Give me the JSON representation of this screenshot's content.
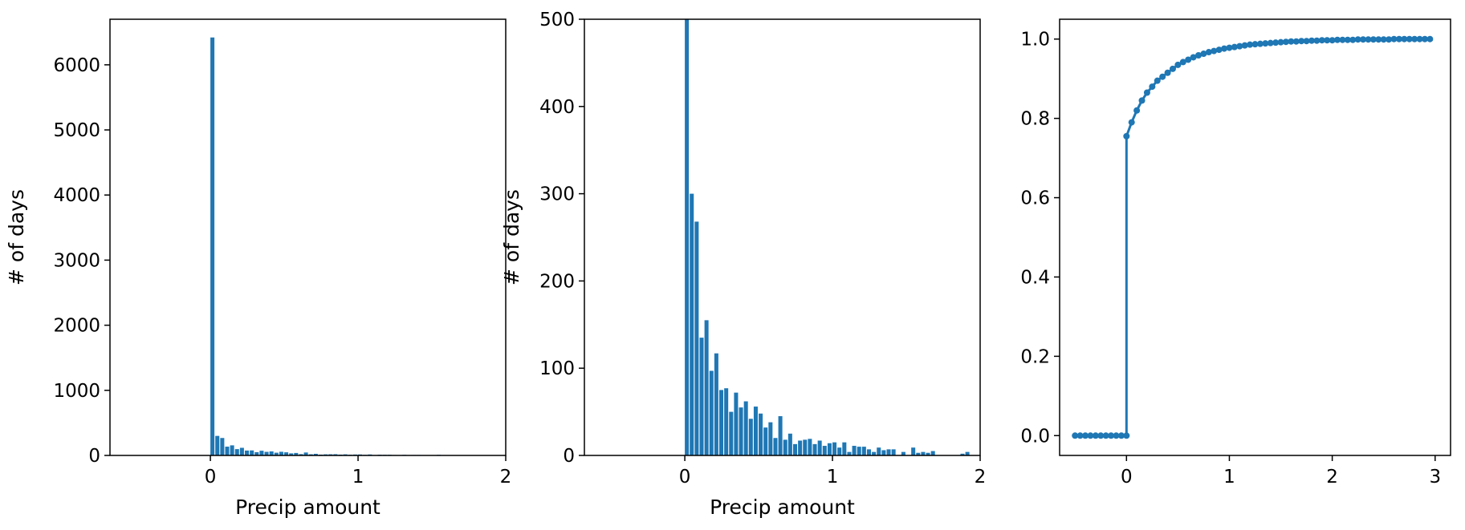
{
  "colors": {
    "bar": "#1f77b4",
    "line": "#1f77b4",
    "axis": "#000000"
  },
  "chart_data": [
    {
      "type": "bar",
      "xlabel": "Precip amount",
      "ylabel": "# of days",
      "xlim": [
        -0.68,
        2.0
      ],
      "ylim": [
        0,
        6700
      ],
      "xticks": [
        0,
        1,
        2
      ],
      "yticks": [
        0,
        1000,
        2000,
        3000,
        4000,
        5000,
        6000
      ],
      "bin_width": 0.0333,
      "x": [
        0.0,
        0.0333,
        0.0667,
        0.1,
        0.1333,
        0.1667,
        0.2,
        0.2333,
        0.2667,
        0.3,
        0.3333,
        0.3667,
        0.4,
        0.4333,
        0.4667,
        0.5,
        0.5333,
        0.5667,
        0.6,
        0.6333,
        0.6667,
        0.7,
        0.7333,
        0.7667,
        0.8,
        0.8333,
        0.8667,
        0.9,
        0.9333,
        0.9667,
        1.0,
        1.0333,
        1.0667,
        1.1,
        1.1333,
        1.1667,
        1.2,
        1.2333,
        1.2667,
        1.3,
        1.3333,
        1.3667,
        1.4,
        1.4333,
        1.4667,
        1.5,
        1.5333,
        1.5667,
        1.6,
        1.6333,
        1.6667,
        1.7,
        1.7333,
        1.7667,
        1.8,
        1.8333,
        1.8667,
        1.9
      ],
      "values": [
        6420,
        300,
        268,
        135,
        155,
        97,
        117,
        75,
        77,
        50,
        72,
        55,
        62,
        42,
        56,
        48,
        32,
        38,
        20,
        45,
        18,
        25,
        13,
        17,
        18,
        19,
        13,
        17,
        11,
        14,
        15,
        9,
        15,
        4,
        11,
        10,
        10,
        7,
        4,
        9,
        6,
        7,
        7,
        0,
        4,
        0,
        9,
        3,
        4,
        3,
        5,
        0,
        0,
        0,
        0,
        0,
        2,
        4
      ]
    },
    {
      "type": "bar",
      "xlabel": "Precip amount",
      "ylabel": "# of days",
      "xlim": [
        -0.68,
        2.0
      ],
      "ylim": [
        0,
        500
      ],
      "xticks": [
        0,
        1,
        2
      ],
      "yticks": [
        0,
        100,
        200,
        300,
        400,
        500
      ],
      "bin_width": 0.0333,
      "x": [
        0.0,
        0.0333,
        0.0667,
        0.1,
        0.1333,
        0.1667,
        0.2,
        0.2333,
        0.2667,
        0.3,
        0.3333,
        0.3667,
        0.4,
        0.4333,
        0.4667,
        0.5,
        0.5333,
        0.5667,
        0.6,
        0.6333,
        0.6667,
        0.7,
        0.7333,
        0.7667,
        0.8,
        0.8333,
        0.8667,
        0.9,
        0.9333,
        0.9667,
        1.0,
        1.0333,
        1.0667,
        1.1,
        1.1333,
        1.1667,
        1.2,
        1.2333,
        1.2667,
        1.3,
        1.3333,
        1.3667,
        1.4,
        1.4333,
        1.4667,
        1.5,
        1.5333,
        1.5667,
        1.6,
        1.6333,
        1.6667,
        1.7,
        1.7333,
        1.7667,
        1.8,
        1.8333,
        1.8667,
        1.9
      ],
      "values": [
        6420,
        300,
        268,
        135,
        155,
        97,
        117,
        75,
        77,
        50,
        72,
        55,
        62,
        42,
        56,
        48,
        32,
        38,
        20,
        45,
        18,
        25,
        13,
        17,
        18,
        19,
        13,
        17,
        11,
        14,
        15,
        9,
        15,
        4,
        11,
        10,
        10,
        7,
        4,
        9,
        6,
        7,
        7,
        0,
        4,
        0,
        9,
        3,
        4,
        3,
        5,
        0,
        0,
        0,
        0,
        0,
        2,
        4
      ]
    },
    {
      "type": "line",
      "xlabel": "",
      "ylabel": "",
      "xlim": [
        -0.65,
        3.15
      ],
      "ylim": [
        -0.05,
        1.05
      ],
      "xticks": [
        0,
        1,
        2,
        3
      ],
      "yticks": [
        0.0,
        0.2,
        0.4,
        0.6,
        0.8,
        1.0
      ],
      "ytick_labels": [
        "0.0",
        "0.2",
        "0.4",
        "0.6",
        "0.8",
        "1.0"
      ],
      "markers": true,
      "x": [
        -0.5,
        -0.45,
        -0.4,
        -0.35,
        -0.3,
        -0.25,
        -0.2,
        -0.15,
        -0.1,
        -0.05,
        0.0,
        0.0,
        0.05,
        0.1,
        0.15,
        0.2,
        0.25,
        0.3,
        0.35,
        0.4,
        0.45,
        0.5,
        0.55,
        0.6,
        0.65,
        0.7,
        0.75,
        0.8,
        0.85,
        0.9,
        0.95,
        1.0,
        1.05,
        1.1,
        1.15,
        1.2,
        1.25,
        1.3,
        1.35,
        1.4,
        1.45,
        1.5,
        1.55,
        1.6,
        1.65,
        1.7,
        1.75,
        1.8,
        1.85,
        1.9,
        1.95,
        2.0,
        2.05,
        2.1,
        2.15,
        2.2,
        2.25,
        2.3,
        2.35,
        2.4,
        2.45,
        2.5,
        2.55,
        2.6,
        2.65,
        2.7,
        2.75,
        2.8,
        2.85,
        2.9,
        2.95
      ],
      "y": [
        0.0,
        0.0,
        0.0,
        0.0,
        0.0,
        0.0,
        0.0,
        0.0,
        0.0,
        0.0,
        0.0,
        0.755,
        0.79,
        0.82,
        0.845,
        0.865,
        0.88,
        0.895,
        0.905,
        0.915,
        0.925,
        0.935,
        0.942,
        0.948,
        0.954,
        0.959,
        0.963,
        0.967,
        0.97,
        0.973,
        0.976,
        0.978,
        0.98,
        0.982,
        0.984,
        0.986,
        0.987,
        0.988,
        0.989,
        0.99,
        0.991,
        0.992,
        0.993,
        0.994,
        0.994,
        0.995,
        0.995,
        0.996,
        0.996,
        0.997,
        0.997,
        0.997,
        0.998,
        0.998,
        0.998,
        0.998,
        0.999,
        0.999,
        0.999,
        0.999,
        0.999,
        0.999,
        0.999,
        1.0,
        1.0,
        1.0,
        1.0,
        1.0,
        1.0,
        1.0,
        1.0
      ]
    }
  ]
}
